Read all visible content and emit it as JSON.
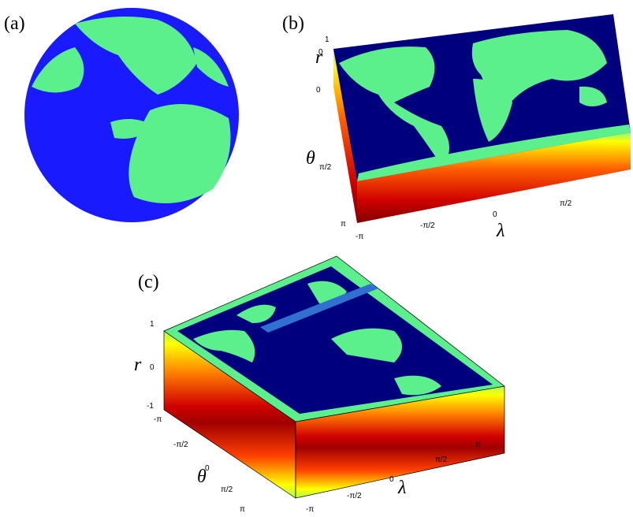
{
  "panels": [
    {
      "label": "(a)"
    },
    {
      "label": "(b)",
      "r": {
        "label": "r",
        "ticks": [
          "1",
          "0"
        ]
      },
      "theta": {
        "label": "θ",
        "ticks": [
          "0",
          "π/2",
          "π"
        ]
      },
      "lambda": {
        "label": "λ",
        "ticks": [
          "-π",
          "-π/2",
          "0",
          "π/2"
        ]
      }
    },
    {
      "label": "(c)",
      "r": {
        "label": "r",
        "ticks": [
          "1",
          "0",
          "-1"
        ]
      },
      "theta": {
        "label": "θ",
        "ticks": [
          "-π",
          "-π/2",
          "0",
          "π/2",
          "π"
        ]
      },
      "lambda": {
        "label": "λ",
        "ticks": [
          "-π",
          "-π/2",
          "0",
          "π/2",
          "π"
        ]
      }
    }
  ]
}
